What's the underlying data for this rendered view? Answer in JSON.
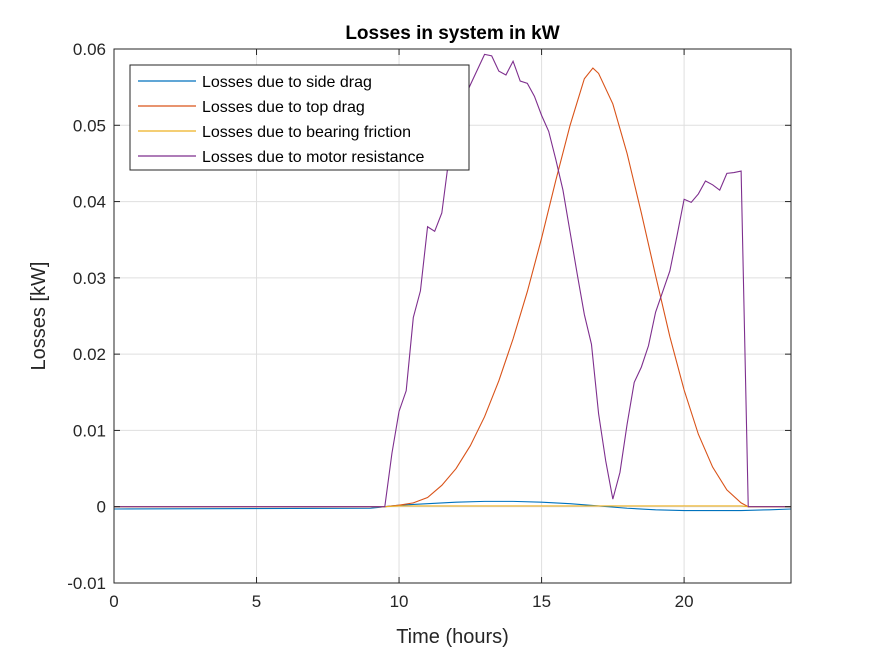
{
  "chart_data": {
    "type": "line",
    "title": "Losses in system in kW",
    "xlabel": "Time (hours)",
    "ylabel": "Losses [kW]",
    "xlim": [
      0,
      23.75
    ],
    "ylim": [
      -0.01,
      0.06
    ],
    "x_ticks": [
      0,
      5,
      10,
      15,
      20
    ],
    "x_tick_labels": [
      "0",
      "5",
      "10",
      "15",
      "20"
    ],
    "y_ticks": [
      -0.01,
      0,
      0.01,
      0.02,
      0.03,
      0.04,
      0.05,
      0.06
    ],
    "y_tick_labels": [
      "-0.01",
      "0",
      "0.01",
      "0.02",
      "0.03",
      "0.04",
      "0.05",
      "0.06"
    ],
    "grid": true,
    "legend_position": "top-left",
    "series": [
      {
        "name": "Losses due to side drag",
        "color": "#0072BD",
        "points": [
          [
            0,
            -0.0003
          ],
          [
            9,
            -0.0002
          ],
          [
            9.5,
            0
          ],
          [
            10,
            0.0002
          ],
          [
            11,
            0.0004
          ],
          [
            12,
            0.0006
          ],
          [
            13,
            0.0007
          ],
          [
            14,
            0.0007
          ],
          [
            15,
            0.0006
          ],
          [
            16,
            0.0004
          ],
          [
            17,
            0.0001
          ],
          [
            18,
            -0.0002
          ],
          [
            19,
            -0.0004
          ],
          [
            20,
            -0.0005
          ],
          [
            21,
            -0.0005
          ],
          [
            22,
            -0.0005
          ],
          [
            23,
            -0.0004
          ],
          [
            23.75,
            -0.0003
          ]
        ]
      },
      {
        "name": "Losses due to top drag",
        "color": "#D95319",
        "points": [
          [
            0,
            0
          ],
          [
            9.5,
            0
          ],
          [
            10,
            0.0002
          ],
          [
            10.5,
            0.0005
          ],
          [
            11,
            0.0012
          ],
          [
            11.5,
            0.0028
          ],
          [
            12,
            0.005
          ],
          [
            12.5,
            0.008
          ],
          [
            13,
            0.0118
          ],
          [
            13.5,
            0.0165
          ],
          [
            14,
            0.022
          ],
          [
            14.5,
            0.0282
          ],
          [
            15,
            0.0352
          ],
          [
            15.5,
            0.0428
          ],
          [
            16,
            0.05
          ],
          [
            16.5,
            0.0561
          ],
          [
            16.8,
            0.0575
          ],
          [
            17,
            0.0568
          ],
          [
            17.5,
            0.0528
          ],
          [
            18,
            0.0463
          ],
          [
            18.5,
            0.0385
          ],
          [
            19,
            0.0303
          ],
          [
            19.5,
            0.0223
          ],
          [
            20,
            0.0153
          ],
          [
            20.5,
            0.0095
          ],
          [
            21,
            0.0052
          ],
          [
            21.5,
            0.0022
          ],
          [
            22,
            0.0005
          ],
          [
            22.25,
            0
          ],
          [
            23.75,
            0
          ]
        ]
      },
      {
        "name": "Losses due to bearing friction",
        "color": "#EDB120",
        "points": [
          [
            0,
            0
          ],
          [
            9.5,
            0
          ],
          [
            10,
            0.0001
          ],
          [
            12,
            0.0001
          ],
          [
            15,
            0.0001
          ],
          [
            18,
            0.0001
          ],
          [
            22,
            0.0001
          ],
          [
            22.25,
            0
          ],
          [
            23.75,
            0
          ]
        ]
      },
      {
        "name": "Losses due to motor resistance",
        "color": "#7E2F8E",
        "points": [
          [
            0,
            0
          ],
          [
            9.5,
            0
          ],
          [
            9.75,
            0.007
          ],
          [
            10,
            0.0125
          ],
          [
            10.25,
            0.0152
          ],
          [
            10.5,
            0.0248
          ],
          [
            10.75,
            0.0283
          ],
          [
            11,
            0.0367
          ],
          [
            11.25,
            0.0361
          ],
          [
            11.5,
            0.0385
          ],
          [
            11.75,
            0.0457
          ],
          [
            12,
            0.0497
          ],
          [
            12.25,
            0.0532
          ],
          [
            12.5,
            0.0553
          ],
          [
            12.75,
            0.0573
          ],
          [
            13,
            0.0593
          ],
          [
            13.25,
            0.0591
          ],
          [
            13.5,
            0.0571
          ],
          [
            13.75,
            0.0566
          ],
          [
            14,
            0.0584
          ],
          [
            14.25,
            0.0558
          ],
          [
            14.5,
            0.0555
          ],
          [
            14.75,
            0.0538
          ],
          [
            15,
            0.0513
          ],
          [
            15.25,
            0.0492
          ],
          [
            15.5,
            0.0455
          ],
          [
            15.75,
            0.0415
          ],
          [
            16,
            0.036
          ],
          [
            16.25,
            0.0305
          ],
          [
            16.5,
            0.0252
          ],
          [
            16.75,
            0.0213
          ],
          [
            17,
            0.0122
          ],
          [
            17.25,
            0.006
          ],
          [
            17.5,
            0.001
          ],
          [
            17.75,
            0.0045
          ],
          [
            18,
            0.0108
          ],
          [
            18.25,
            0.0163
          ],
          [
            18.5,
            0.0183
          ],
          [
            18.75,
            0.0211
          ],
          [
            19,
            0.0255
          ],
          [
            19.25,
            0.0282
          ],
          [
            19.5,
            0.0309
          ],
          [
            19.75,
            0.0355
          ],
          [
            20,
            0.0403
          ],
          [
            20.25,
            0.0399
          ],
          [
            20.5,
            0.041
          ],
          [
            20.75,
            0.0427
          ],
          [
            21,
            0.0422
          ],
          [
            21.25,
            0.0415
          ],
          [
            21.5,
            0.0437
          ],
          [
            21.75,
            0.0438
          ],
          [
            22,
            0.044
          ],
          [
            22.25,
            0
          ],
          [
            23.75,
            0
          ]
        ]
      }
    ]
  }
}
